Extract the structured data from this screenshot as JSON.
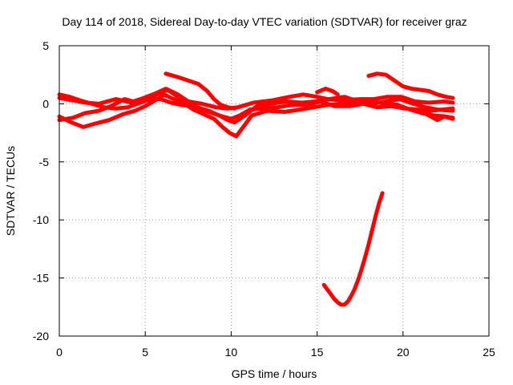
{
  "chart_data": {
    "type": "line",
    "title": "Day 114 of 2018, Sidereal Day-to-day VTEC variation (SDTVAR) for receiver graz",
    "xlabel": "GPS time / hours",
    "ylabel": "SDTVAR / TECUs",
    "xlim": [
      0,
      25
    ],
    "ylim": [
      -20,
      5
    ],
    "xticks": [
      0,
      5,
      10,
      15,
      20,
      25
    ],
    "yticks": [
      5,
      0,
      -5,
      -10,
      -15,
      -20
    ],
    "grid": true,
    "color": "#ff0000",
    "series": [
      {
        "name": "trace-1",
        "points": [
          [
            0,
            0.5
          ],
          [
            0.8,
            0.3
          ],
          [
            1.5,
            0.1
          ],
          [
            2.3,
            0.0
          ],
          [
            3.3,
            0.4
          ],
          [
            4.2,
            0.1
          ],
          [
            5.0,
            0.3
          ],
          [
            5.8,
            0.9
          ],
          [
            6.3,
            1.2
          ],
          [
            6.9,
            0.6
          ],
          [
            7.5,
            0.2
          ],
          [
            8.3,
            0.0
          ],
          [
            9.1,
            -0.3
          ],
          [
            9.8,
            -0.4
          ],
          [
            10.4,
            -0.3
          ],
          [
            11.3,
            0.1
          ],
          [
            12.4,
            0.3
          ],
          [
            13.4,
            0.6
          ],
          [
            14.2,
            0.8
          ],
          [
            15.0,
            0.6
          ],
          [
            15.6,
            0.4
          ],
          [
            16.4,
            0.3
          ],
          [
            17.5,
            0.4
          ],
          [
            18.3,
            0.4
          ],
          [
            19.1,
            0.6
          ],
          [
            19.9,
            0.6
          ],
          [
            20.7,
            0.2
          ],
          [
            21.5,
            0.1
          ],
          [
            22.4,
            0.2
          ],
          [
            22.9,
            0.1
          ]
        ]
      },
      {
        "name": "trace-2",
        "points": [
          [
            0,
            -1.1
          ],
          [
            0.7,
            -1.6
          ],
          [
            1.4,
            -2.0
          ],
          [
            2.1,
            -1.7
          ],
          [
            2.9,
            -1.4
          ],
          [
            3.7,
            -0.9
          ],
          [
            4.4,
            -0.6
          ],
          [
            5.0,
            -0.2
          ],
          [
            5.7,
            0.4
          ],
          [
            6.1,
            0.8
          ],
          [
            6.5,
            0.5
          ],
          [
            7.2,
            0.1
          ],
          [
            7.8,
            -0.5
          ],
          [
            8.4,
            -0.9
          ],
          [
            9.0,
            -1.3
          ],
          [
            9.5,
            -2.0
          ],
          [
            9.9,
            -2.5
          ],
          [
            10.3,
            -2.8
          ],
          [
            10.7,
            -2.0
          ],
          [
            11.2,
            -1.0
          ],
          [
            12.1,
            -0.6
          ],
          [
            13.1,
            -0.7
          ],
          [
            14.0,
            -0.5
          ],
          [
            14.8,
            -0.3
          ],
          [
            15.6,
            -0.1
          ],
          [
            16.5,
            0.0
          ],
          [
            17.4,
            0.1
          ],
          [
            18.2,
            0.2
          ],
          [
            19.0,
            0.0
          ],
          [
            19.7,
            -0.1
          ],
          [
            20.4,
            -0.5
          ],
          [
            21.1,
            -0.8
          ],
          [
            21.8,
            -1.0
          ],
          [
            22.5,
            -1.1
          ],
          [
            22.9,
            -1.2
          ]
        ]
      },
      {
        "name": "trace-3",
        "points": [
          [
            0,
            -1.4
          ],
          [
            0.8,
            -1.2
          ],
          [
            1.5,
            -0.8
          ],
          [
            2.3,
            -0.6
          ],
          [
            3.0,
            -0.2
          ],
          [
            3.8,
            0.4
          ],
          [
            4.3,
            0.2
          ],
          [
            4.9,
            0.5
          ],
          [
            5.6,
            0.9
          ],
          [
            6.2,
            1.3
          ],
          [
            6.9,
            0.8
          ],
          [
            7.4,
            0.3
          ],
          [
            8.0,
            -0.3
          ],
          [
            8.7,
            -0.6
          ],
          [
            9.3,
            -1.0
          ],
          [
            9.8,
            -1.4
          ],
          [
            10.2,
            -1.6
          ],
          [
            10.8,
            -1.0
          ],
          [
            11.5,
            -0.2
          ],
          [
            12.3,
            0.0
          ],
          [
            13.2,
            0.2
          ],
          [
            14.1,
            0.1
          ],
          [
            14.9,
            0.2
          ],
          [
            15.7,
            0.4
          ],
          [
            16.6,
            0.6
          ],
          [
            17.4,
            0.2
          ],
          [
            18.2,
            0.0
          ],
          [
            19.0,
            0.2
          ],
          [
            19.8,
            0.4
          ],
          [
            20.6,
            0.0
          ],
          [
            21.3,
            -0.3
          ],
          [
            22.0,
            -0.5
          ],
          [
            22.9,
            -0.6
          ]
        ]
      },
      {
        "name": "trace-4",
        "points": [
          [
            0,
            0.8
          ],
          [
            0.6,
            0.6
          ],
          [
            1.2,
            0.3
          ],
          [
            1.9,
            0.0
          ],
          [
            2.6,
            -0.3
          ],
          [
            3.3,
            -0.4
          ],
          [
            4.0,
            -0.3
          ],
          [
            4.7,
            0.1
          ],
          [
            5.3,
            0.4
          ],
          [
            5.9,
            0.4
          ],
          [
            6.5,
            0.1
          ],
          [
            7.1,
            -0.1
          ],
          [
            7.7,
            -0.2
          ],
          [
            8.3,
            -0.5
          ],
          [
            8.9,
            -0.8
          ],
          [
            9.5,
            -1.1
          ],
          [
            10.0,
            -1.3
          ],
          [
            10.5,
            -1.0
          ],
          [
            11.1,
            -0.5
          ],
          [
            11.9,
            -0.4
          ],
          [
            12.7,
            -0.3
          ],
          [
            13.5,
            -0.1
          ],
          [
            14.4,
            -0.1
          ],
          [
            15.2,
            0.2
          ],
          [
            16.0,
            -0.2
          ],
          [
            16.9,
            -0.2
          ],
          [
            17.7,
            0.0
          ],
          [
            18.5,
            -0.3
          ],
          [
            19.3,
            -0.2
          ],
          [
            20.1,
            -0.4
          ],
          [
            20.9,
            -0.5
          ],
          [
            21.6,
            -0.6
          ],
          [
            22.9,
            -0.4
          ]
        ]
      },
      {
        "name": "trace-5",
        "points": [
          [
            6.2,
            2.6
          ],
          [
            6.9,
            2.3
          ],
          [
            7.5,
            2.0
          ],
          [
            8.1,
            1.7
          ],
          [
            8.6,
            1.1
          ],
          [
            9.0,
            0.4
          ],
          [
            9.4,
            -0.1
          ],
          [
            9.8,
            -0.3
          ],
          [
            10.2,
            -0.4
          ]
        ]
      },
      {
        "name": "trace-6",
        "points": [
          [
            15.0,
            1.0
          ],
          [
            15.5,
            1.3
          ],
          [
            15.9,
            1.1
          ],
          [
            16.2,
            0.8
          ]
        ]
      },
      {
        "name": "trace-7",
        "points": [
          [
            18.0,
            2.4
          ],
          [
            18.5,
            2.6
          ],
          [
            19.0,
            2.5
          ],
          [
            19.5,
            2.0
          ],
          [
            20.0,
            1.5
          ],
          [
            20.5,
            1.3
          ],
          [
            21.0,
            1.2
          ],
          [
            21.5,
            1.1
          ],
          [
            22.0,
            0.8
          ],
          [
            22.5,
            0.6
          ],
          [
            22.9,
            0.5
          ]
        ]
      },
      {
        "name": "trace-8",
        "points": [
          [
            21.0,
            -0.6
          ],
          [
            21.5,
            -1.0
          ],
          [
            22.0,
            -1.4
          ],
          [
            22.4,
            -1.1
          ],
          [
            22.9,
            -1.3
          ]
        ]
      },
      {
        "name": "trace-9",
        "points": [
          [
            15.4,
            -15.6
          ],
          [
            15.6,
            -16.0
          ],
          [
            15.8,
            -16.4
          ],
          [
            16.0,
            -16.8
          ],
          [
            16.2,
            -17.1
          ],
          [
            16.4,
            -17.3
          ],
          [
            16.6,
            -17.3
          ],
          [
            16.8,
            -17.0
          ],
          [
            17.0,
            -16.5
          ],
          [
            17.2,
            -15.9
          ],
          [
            17.4,
            -15.1
          ],
          [
            17.6,
            -14.2
          ],
          [
            17.8,
            -13.2
          ],
          [
            18.0,
            -12.1
          ],
          [
            18.2,
            -10.9
          ],
          [
            18.4,
            -9.7
          ],
          [
            18.6,
            -8.6
          ],
          [
            18.8,
            -7.7
          ]
        ]
      }
    ]
  }
}
